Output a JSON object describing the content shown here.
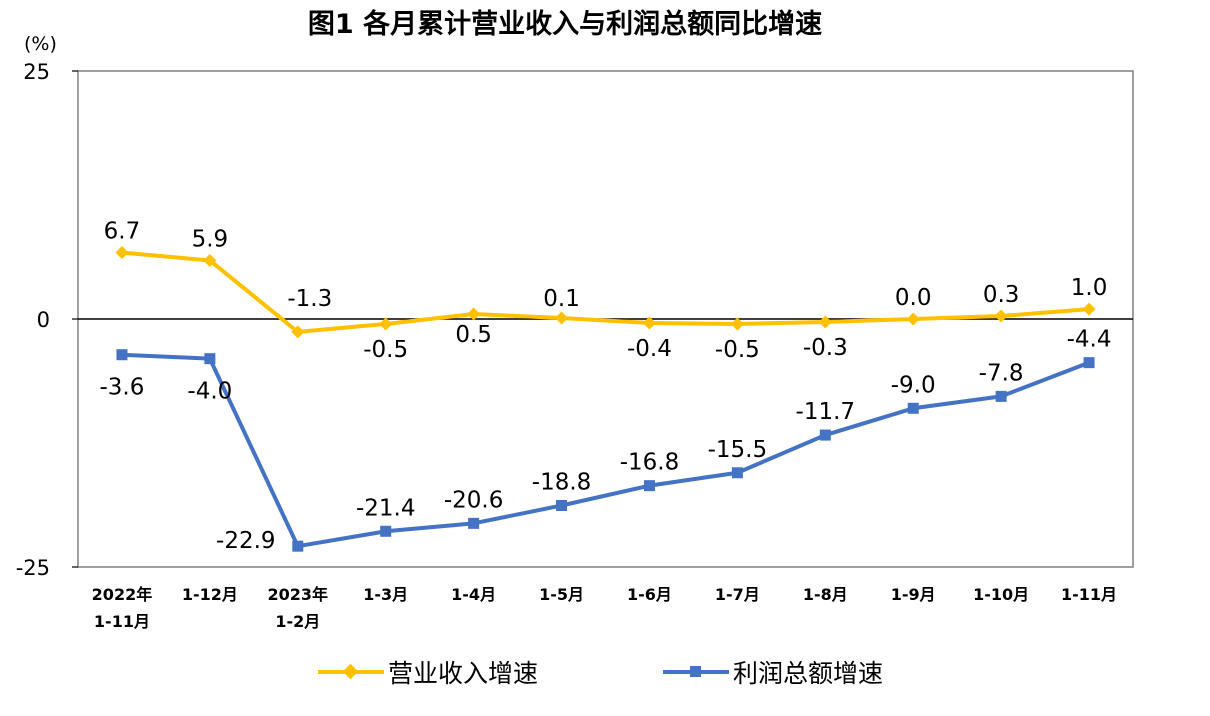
{
  "title": "图1  各月累计营业收入与利润总额同比增速",
  "chart_data": {
    "type": "line",
    "unit_label": "(%)",
    "categories": [
      [
        "2022年",
        "1-11月"
      ],
      [
        "1-12月"
      ],
      [
        "2023年",
        "1-2月"
      ],
      [
        "1-3月"
      ],
      [
        "1-4月"
      ],
      [
        "1-5月"
      ],
      [
        "1-6月"
      ],
      [
        "1-7月"
      ],
      [
        "1-8月"
      ],
      [
        "1-9月"
      ],
      [
        "1-10月"
      ],
      [
        "1-11月"
      ]
    ],
    "ylim": [
      -25,
      25
    ],
    "yticks": [
      -25,
      0,
      25
    ],
    "grid": false,
    "legend_position": "bottom",
    "series": [
      {
        "name": "营业收入增速",
        "color": "#FFC000",
        "marker": "diamond",
        "values": [
          6.7,
          5.9,
          -1.3,
          -0.5,
          0.5,
          0.1,
          -0.4,
          -0.5,
          -0.3,
          0.0,
          0.3,
          1.0
        ],
        "labels": [
          "6.7",
          "5.9",
          "-1.3",
          "-0.5",
          "0.5",
          "0.1",
          "-0.4",
          "-0.5",
          "-0.3",
          "0.0",
          "0.3",
          "1.0"
        ]
      },
      {
        "name": "利润总额增速",
        "color": "#4472C4",
        "marker": "square",
        "values": [
          -3.6,
          -4.0,
          -22.9,
          -21.4,
          -20.6,
          -18.8,
          -16.8,
          -15.5,
          -11.7,
          -9.0,
          -7.8,
          -4.4
        ],
        "labels": [
          "-3.6",
          "-4.0",
          "-22.9",
          "-21.4",
          "-20.6",
          "-18.8",
          "-16.8",
          "-15.5",
          "-11.7",
          "-9.0",
          "-7.8",
          "-4.4"
        ]
      }
    ]
  }
}
